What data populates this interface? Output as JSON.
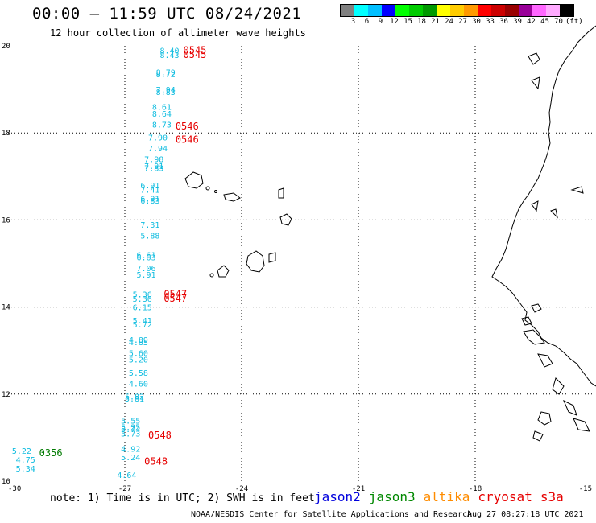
{
  "header": {
    "title": "00:00 — 11:59 UTC 08/24/2021",
    "subtitle": "12 hour collection of altimeter wave heights"
  },
  "colorbar": {
    "colors": [
      "#808080",
      "#00ffff",
      "#00bfff",
      "#0000ff",
      "#00ff00",
      "#00cc00",
      "#009900",
      "#ffff00",
      "#ffcc00",
      "#ff9900",
      "#ff0000",
      "#cc0000",
      "#990000",
      "#990099",
      "#ff66ff",
      "#ffaaff",
      "#000000"
    ],
    "labels": [
      "3",
      "6",
      "9",
      "12",
      "15",
      "18",
      "21",
      "24",
      "27",
      "30",
      "33",
      "36",
      "39",
      "42",
      "45",
      "70",
      "(ft)"
    ]
  },
  "map": {
    "lon_range": [
      -30,
      -15
    ],
    "lat_range": [
      10,
      20
    ],
    "x_ticks": [
      "-30",
      "-27",
      "-24",
      "-21",
      "-18",
      "-15"
    ],
    "y_ticks": [
      "20",
      "18",
      "16",
      "14",
      "12",
      "10"
    ]
  },
  "observations": [
    {
      "v": "8.40",
      "lon": -26.1,
      "lat": 19.9
    },
    {
      "v": "8.43",
      "lon": -26.1,
      "lat": 19.8
    },
    {
      "v": "8.79",
      "lon": -26.2,
      "lat": 19.4
    },
    {
      "v": "8.72",
      "lon": -26.2,
      "lat": 19.35
    },
    {
      "v": "7.94",
      "lon": -26.2,
      "lat": 19.0
    },
    {
      "v": "8.83",
      "lon": -26.2,
      "lat": 18.95
    },
    {
      "v": "8.61",
      "lon": -26.3,
      "lat": 18.6
    },
    {
      "v": "8.64",
      "lon": -26.3,
      "lat": 18.45
    },
    {
      "v": "8.73",
      "lon": -26.3,
      "lat": 18.2
    },
    {
      "v": "7.90",
      "lon": -26.4,
      "lat": 17.9
    },
    {
      "v": "7.94",
      "lon": -26.4,
      "lat": 17.65
    },
    {
      "v": "7.98",
      "lon": -26.5,
      "lat": 17.4
    },
    {
      "v": "7.91",
      "lon": -26.5,
      "lat": 17.25
    },
    {
      "v": "7.83",
      "lon": -26.5,
      "lat": 17.2
    },
    {
      "v": "6.91",
      "lon": -26.6,
      "lat": 16.8
    },
    {
      "v": "7.41",
      "lon": -26.6,
      "lat": 16.7
    },
    {
      "v": "6.91",
      "lon": -26.6,
      "lat": 16.5
    },
    {
      "v": "6.83",
      "lon": -26.6,
      "lat": 16.45
    },
    {
      "v": "7.31",
      "lon": -26.6,
      "lat": 15.9
    },
    {
      "v": "5.88",
      "lon": -26.6,
      "lat": 15.65
    },
    {
      "v": "6.61",
      "lon": -26.7,
      "lat": 15.2
    },
    {
      "v": "6.63",
      "lon": -26.7,
      "lat": 15.15
    },
    {
      "v": "7.06",
      "lon": -26.7,
      "lat": 14.9
    },
    {
      "v": "5.91",
      "lon": -26.7,
      "lat": 14.75
    },
    {
      "v": "5.36",
      "lon": -26.8,
      "lat": 14.3
    },
    {
      "v": "5.36",
      "lon": -26.8,
      "lat": 14.2
    },
    {
      "v": "6.15",
      "lon": -26.8,
      "lat": 14.0
    },
    {
      "v": "5.41",
      "lon": -26.8,
      "lat": 13.7
    },
    {
      "v": "5.72",
      "lon": -26.8,
      "lat": 13.6
    },
    {
      "v": "4.89",
      "lon": -26.9,
      "lat": 13.25
    },
    {
      "v": "4.85",
      "lon": -26.9,
      "lat": 13.2
    },
    {
      "v": "5.60",
      "lon": -26.9,
      "lat": 12.95
    },
    {
      "v": "5.20",
      "lon": -26.9,
      "lat": 12.8
    },
    {
      "v": "5.58",
      "lon": -26.9,
      "lat": 12.5
    },
    {
      "v": "4.60",
      "lon": -26.9,
      "lat": 12.25
    },
    {
      "v": "5.82",
      "lon": -27.0,
      "lat": 11.95
    },
    {
      "v": "5.81",
      "lon": -27.0,
      "lat": 11.9
    },
    {
      "v": "5.55",
      "lon": -27.1,
      "lat": 11.4
    },
    {
      "v": "5.25",
      "lon": -27.1,
      "lat": 11.25
    },
    {
      "v": "5.74",
      "lon": -27.1,
      "lat": 11.2
    },
    {
      "v": "5.73",
      "lon": -27.1,
      "lat": 11.1
    },
    {
      "v": "4.92",
      "lon": -27.1,
      "lat": 10.75
    },
    {
      "v": "5.24",
      "lon": -27.1,
      "lat": 10.55
    },
    {
      "v": "4.64",
      "lon": -27.2,
      "lat": 10.15
    },
    {
      "v": "5.22",
      "lon": -29.9,
      "lat": 10.7
    },
    {
      "v": "4.75",
      "lon": -29.8,
      "lat": 10.5
    },
    {
      "v": "5.34",
      "lon": -29.8,
      "lat": 10.3
    }
  ],
  "times": [
    {
      "t": "0545",
      "lon": -25.5,
      "lat": 19.9,
      "color": "#e60000"
    },
    {
      "t": "0545",
      "lon": -25.5,
      "lat": 19.8,
      "color": "#e60000"
    },
    {
      "t": "0546",
      "lon": -25.7,
      "lat": 18.15,
      "color": "#e60000"
    },
    {
      "t": "0546",
      "lon": -25.7,
      "lat": 17.85,
      "color": "#e60000"
    },
    {
      "t": "0547",
      "lon": -26.0,
      "lat": 14.3,
      "color": "#e60000"
    },
    {
      "t": "0547",
      "lon": -26.0,
      "lat": 14.2,
      "color": "#e60000"
    },
    {
      "t": "0548",
      "lon": -26.4,
      "lat": 11.05,
      "color": "#e60000"
    },
    {
      "t": "0548",
      "lon": -26.5,
      "lat": 10.45,
      "color": "#e60000"
    },
    {
      "t": "0356",
      "lon": -29.2,
      "lat": 10.65,
      "color": "#007a00"
    }
  ],
  "footer": {
    "note": "note: 1) Time is in UTC; 2) SWH is in feet",
    "credit": "NOAA/NESDIS Center for Satellite Applications and Research",
    "timestamp": "Aug 27 08:27:18 UTC 2021"
  },
  "legend": [
    {
      "label": "jason2",
      "color": "#0000dd"
    },
    {
      "label": "jason3",
      "color": "#008800"
    },
    {
      "label": "altika",
      "color": "#ff8c00"
    },
    {
      "label": "cryosat",
      "color": "#e60000"
    },
    {
      "label": "s3a",
      "color": "#e60000"
    }
  ]
}
